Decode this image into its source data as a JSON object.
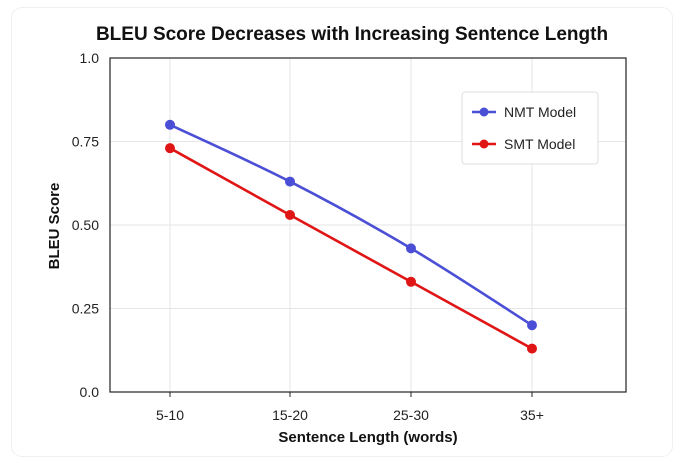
{
  "chart_data": {
    "type": "line",
    "title": "BLEU Score Decreases with Increasing Sentence Length",
    "xlabel": "Sentence Length (words)",
    "ylabel": "BLEU Score",
    "categories": [
      "5-10",
      "15-20",
      "25-30",
      "35+"
    ],
    "ylim": [
      0,
      1.0
    ],
    "yticks": [
      0.0,
      0.25,
      0.5,
      0.75,
      1.0
    ],
    "ytick_labels": [
      "0.0",
      "0.25",
      "0.50",
      "0.75",
      "1.0"
    ],
    "grid": true,
    "legend_position": "top-right",
    "series": [
      {
        "name": "NMT Model",
        "color": "#4b4fd6",
        "values": [
          0.8,
          0.63,
          0.43,
          0.2
        ]
      },
      {
        "name": "SMT Model",
        "color": "#e01515",
        "values": [
          0.73,
          0.53,
          0.33,
          0.13
        ]
      }
    ]
  }
}
